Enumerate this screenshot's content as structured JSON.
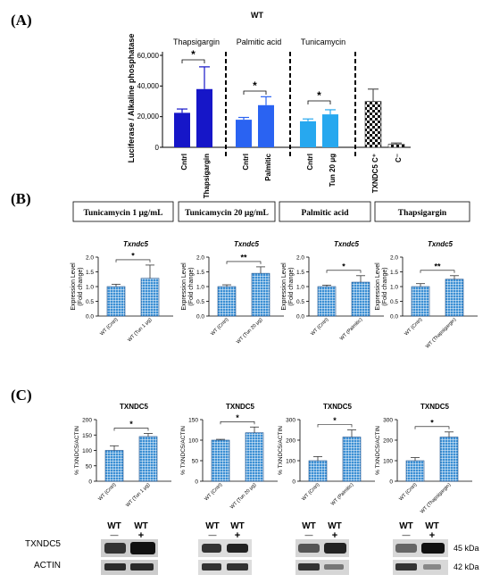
{
  "panel_labels": {
    "a": "(A)",
    "b": "(B)",
    "c": "(C)"
  },
  "colors": {
    "thapsigargin": "#1616c8",
    "palmitic": "#2a63f2",
    "tunicamycin": "#27a8ef",
    "check_dark": "#111111",
    "grid_fill": "#3b8fd4",
    "grid_line": "#ffffff"
  },
  "panel_a": {
    "title": "WT",
    "ylabel": "Luciferase / Alkaline phosphatase",
    "group_labels": [
      "Thapsigargin",
      "Palmitic acid",
      "Tunicamycin"
    ],
    "yticks": [
      "0",
      "20,000",
      "40,000",
      "60,000"
    ],
    "significance": [
      "*",
      "*",
      "*"
    ]
  },
  "panel_b": {
    "headers": [
      "Tunicamycin 1 μg/mL",
      "Tunicamycin 20 μg/mL",
      "Palmitic acid",
      "Thapsigargin"
    ],
    "gene_title": "Txndc5",
    "ylabel_1": "Expression Level",
    "ylabel_2": "(Fold change)",
    "subplots": [
      {
        "yticks": [
          "0.0",
          "0.5",
          "1.0",
          "1.5",
          "2.0"
        ],
        "sig": "*"
      },
      {
        "yticks": [
          "0.0",
          "0.5",
          "1.0",
          "1.5",
          "2.0"
        ],
        "sig": "**"
      },
      {
        "yticks": [
          "0.0",
          "0.5",
          "1.0",
          "1.5",
          "2.0"
        ],
        "sig": "*"
      },
      {
        "yticks": [
          "0.0",
          "0.5",
          "1.0",
          "1.5",
          "2.0"
        ],
        "sig": "**"
      }
    ]
  },
  "panel_c": {
    "title": "TXNDC5",
    "ylabel": "% TXNDC5/ACTIN",
    "subplots": [
      {
        "yticks": [
          "0",
          "50",
          "100",
          "150",
          "200"
        ],
        "sig": "*"
      },
      {
        "yticks": [
          "0",
          "50",
          "100",
          "150"
        ],
        "sig": "*"
      },
      {
        "yticks": [
          "0",
          "100",
          "200",
          "300"
        ],
        "sig": "*"
      },
      {
        "yticks": [
          "0",
          "100",
          "200",
          "300"
        ],
        "sig": "*"
      }
    ],
    "blot": {
      "lane_label": "WT",
      "minus": "—",
      "plus": "+",
      "row_labels": [
        "TXNDC5",
        "ACTIN"
      ],
      "sizes": [
        "45 kDa",
        "42 kDa"
      ]
    }
  },
  "chart_data": [
    {
      "type": "bar",
      "title": "WT",
      "ylabel": "Luciferase / Alkaline phosphatase",
      "ylim": [
        0,
        60000
      ],
      "categories": [
        "Cntrl",
        "Thapsigargin",
        "Cntrl",
        "Palmitic",
        "Cntrl",
        "Tun 20 μg",
        "TXNDC5 C⁺",
        "C⁻"
      ],
      "values": [
        22500,
        38000,
        18000,
        27500,
        17000,
        21500,
        30000,
        2000
      ],
      "errors": [
        2500,
        14500,
        1500,
        5500,
        1500,
        3000,
        8000,
        800
      ]
    },
    {
      "type": "bar",
      "title": "Txndc5",
      "ylim": [
        0,
        2.0
      ],
      "categories": [
        "WT (Cntrl)",
        "WT (Tun 1 μg)"
      ],
      "values": [
        1.0,
        1.28
      ],
      "errors": [
        0.08,
        0.45
      ]
    },
    {
      "type": "bar",
      "title": "Txndc5",
      "ylim": [
        0,
        2.0
      ],
      "categories": [
        "WT (Cntrl)",
        "WT (Tun 20 μg)"
      ],
      "values": [
        1.0,
        1.45
      ],
      "errors": [
        0.06,
        0.22
      ]
    },
    {
      "type": "bar",
      "title": "Txndc5",
      "ylim": [
        0,
        2.0
      ],
      "categories": [
        "WT (Cntrl)",
        "WT (Palmitic)"
      ],
      "values": [
        1.0,
        1.15
      ],
      "errors": [
        0.05,
        0.22
      ]
    },
    {
      "type": "bar",
      "title": "Txndc5",
      "ylim": [
        0,
        2.0
      ],
      "categories": [
        "WT (Cntrl)",
        "WT (Thapsigargin)"
      ],
      "values": [
        1.0,
        1.25
      ],
      "errors": [
        0.1,
        0.12
      ]
    },
    {
      "type": "bar",
      "title": "TXNDC5",
      "ylabel": "% TXNDC5/ACTIN",
      "ylim": [
        0,
        200
      ],
      "categories": [
        "WT (Cntrl)",
        "WT (Tun 1 μg)"
      ],
      "values": [
        100,
        145
      ],
      "errors": [
        15,
        10
      ]
    },
    {
      "type": "bar",
      "title": "TXNDC5",
      "ylabel": "% TXNDC5/ACTIN",
      "ylim": [
        0,
        150
      ],
      "categories": [
        "WT (Cntrl)",
        "WT (Tun 20 μg)"
      ],
      "values": [
        100,
        118
      ],
      "errors": [
        2,
        14
      ]
    },
    {
      "type": "bar",
      "title": "TXNDC5",
      "ylabel": "% TXNDC5/ACTIN",
      "ylim": [
        0,
        300
      ],
      "categories": [
        "WT (Cntrl)",
        "WT (Palmitic)"
      ],
      "values": [
        100,
        215
      ],
      "errors": [
        20,
        35
      ]
    },
    {
      "type": "bar",
      "title": "TXNDC5",
      "ylabel": "% TXNDC5/ACTIN",
      "ylim": [
        0,
        300
      ],
      "categories": [
        "WT (Cntrl)",
        "WT (Thapsigargin)"
      ],
      "values": [
        100,
        215
      ],
      "errors": [
        15,
        25
      ]
    }
  ]
}
